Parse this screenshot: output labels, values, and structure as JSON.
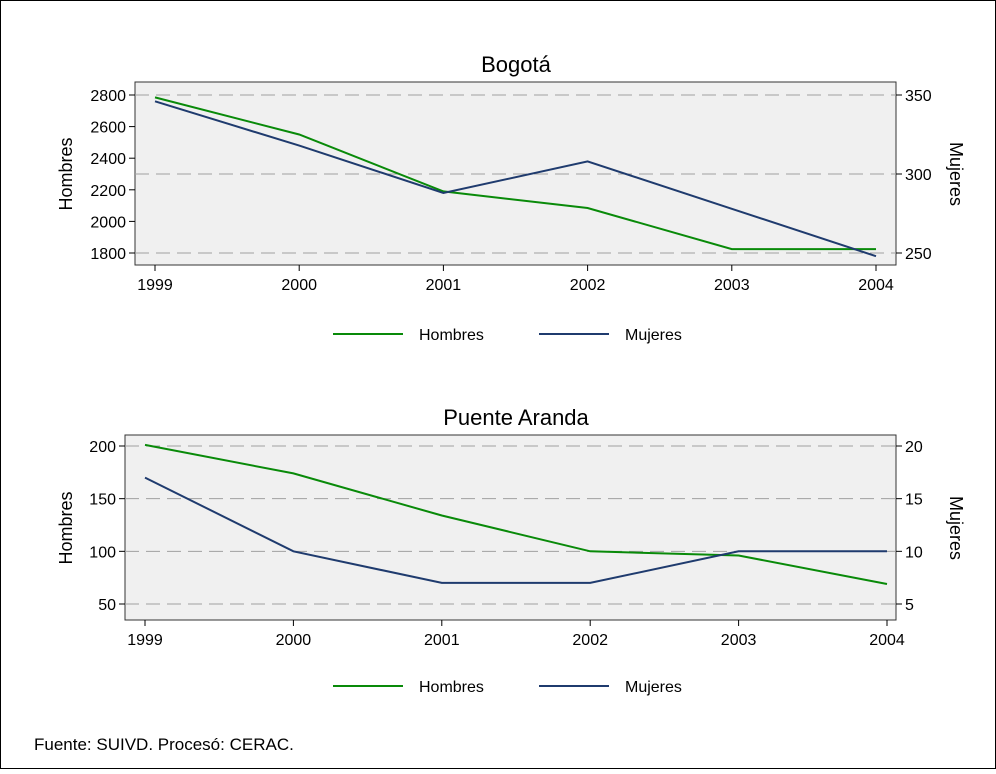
{
  "colors": {
    "hombres": "#098a09",
    "mujeres": "#1f3b6e",
    "plot_bg": "#f0f0f0",
    "grid": "#a0a0a0",
    "frame": "#333333"
  },
  "source_note": "Fuente: SUIVD. Procesó: CERAC.",
  "chart_data": [
    {
      "type": "line",
      "title": "Bogotá",
      "ylabel_left": "Hombres",
      "ylabel_right": "Mujeres",
      "x": [
        "1999",
        "2000",
        "2001",
        "2002",
        "2003",
        "2004"
      ],
      "xtick_labels": [
        "1999",
        "2000",
        "2001",
        "2002",
        "2003",
        "2004"
      ],
      "left_ticks": [
        "1800",
        "2000",
        "2200",
        "2400",
        "2600",
        "2800"
      ],
      "right_ticks": [
        "250",
        "300",
        "350"
      ],
      "left_ylim": [
        1800,
        2800
      ],
      "right_ylim": [
        250,
        350
      ],
      "gridlines_right_axis": [
        250,
        300,
        350
      ],
      "legend": [
        "Hombres",
        "Mujeres"
      ],
      "series": [
        {
          "name": "Hombres",
          "axis": "left",
          "values": [
            2785,
            2550,
            2190,
            2085,
            1825,
            1825
          ]
        },
        {
          "name": "Mujeres",
          "axis": "right",
          "values": [
            346,
            318,
            288,
            308,
            278,
            248
          ]
        }
      ]
    },
    {
      "type": "line",
      "title": "Puente Aranda",
      "ylabel_left": "Hombres",
      "ylabel_right": "Mujeres",
      "x": [
        "1999",
        "2000",
        "2001",
        "2002",
        "2003",
        "2004"
      ],
      "xtick_labels": [
        "1999",
        "2000",
        "2001",
        "2002",
        "2003",
        "2004"
      ],
      "left_ticks": [
        "50",
        "100",
        "150",
        "200"
      ],
      "right_ticks": [
        "5",
        "10",
        "15",
        "20"
      ],
      "left_ylim": [
        50,
        200
      ],
      "right_ylim": [
        5,
        20
      ],
      "gridlines_right_axis": [
        5,
        10,
        15,
        20
      ],
      "legend": [
        "Hombres",
        "Mujeres"
      ],
      "series": [
        {
          "name": "Hombres",
          "axis": "left",
          "values": [
            201,
            174,
            134,
            100,
            96,
            69
          ]
        },
        {
          "name": "Mujeres",
          "axis": "right",
          "values": [
            17,
            10,
            7,
            7,
            10,
            10
          ]
        }
      ]
    }
  ]
}
